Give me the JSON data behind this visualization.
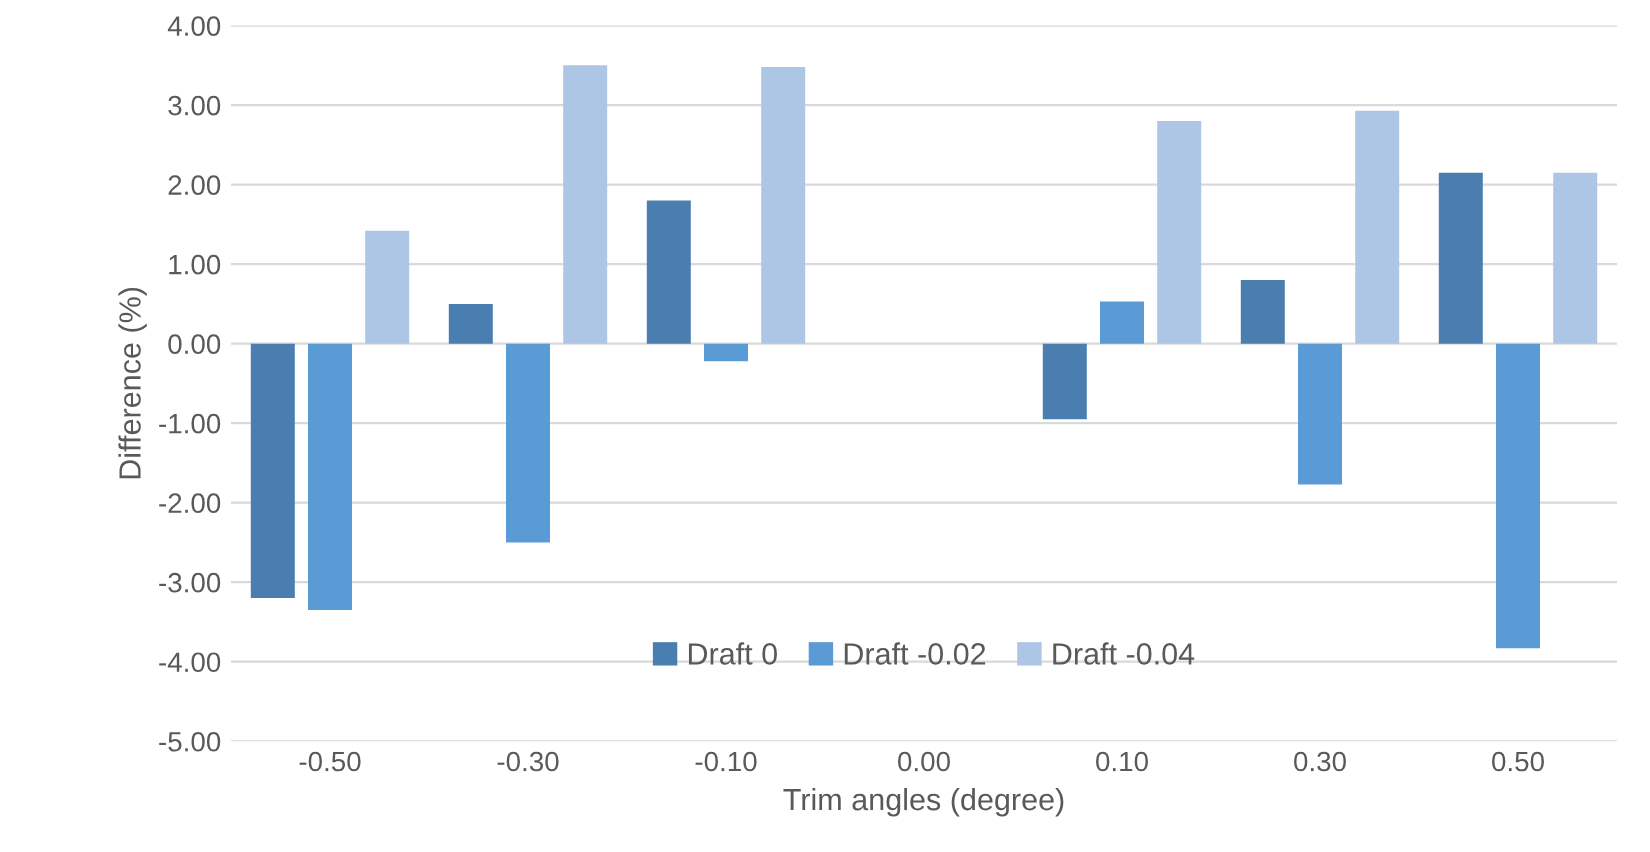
{
  "chart_data": {
    "type": "bar",
    "xlabel": "Trim angles (degree)",
    "ylabel": "Difference (%)",
    "categories": [
      "-0.50",
      "-0.30",
      "-0.10",
      "0.00",
      "0.10",
      "0.30",
      "0.50"
    ],
    "series": [
      {
        "name": "Draft 0",
        "color": "#4a7eb0",
        "values": [
          -3.2,
          0.5,
          1.8,
          0,
          -0.95,
          0.8,
          2.15
        ]
      },
      {
        "name": "Draft -0.02",
        "color": "#5b9bd5",
        "values": [
          -3.35,
          -2.5,
          -0.22,
          0,
          0.53,
          -1.77,
          -3.83
        ]
      },
      {
        "name": "Draft -0.04",
        "color": "#adc6e5",
        "values": [
          1.42,
          3.5,
          3.48,
          0,
          2.8,
          2.93,
          2.15
        ]
      }
    ],
    "ylim": [
      -5,
      4
    ],
    "yticks": [
      {
        "value": -5,
        "label": "-5.00"
      },
      {
        "value": -4,
        "label": "-4.00"
      },
      {
        "value": -3,
        "label": "-3.00"
      },
      {
        "value": -2,
        "label": "-2.00"
      },
      {
        "value": -1,
        "label": "-1.00"
      },
      {
        "value": 0,
        "label": "0.00"
      },
      {
        "value": 1,
        "label": "1.00"
      },
      {
        "value": 2,
        "label": "2.00"
      },
      {
        "value": 3,
        "label": "3.00"
      },
      {
        "value": 4,
        "label": "4.00"
      }
    ],
    "grid": "y",
    "legend": "bottom"
  }
}
